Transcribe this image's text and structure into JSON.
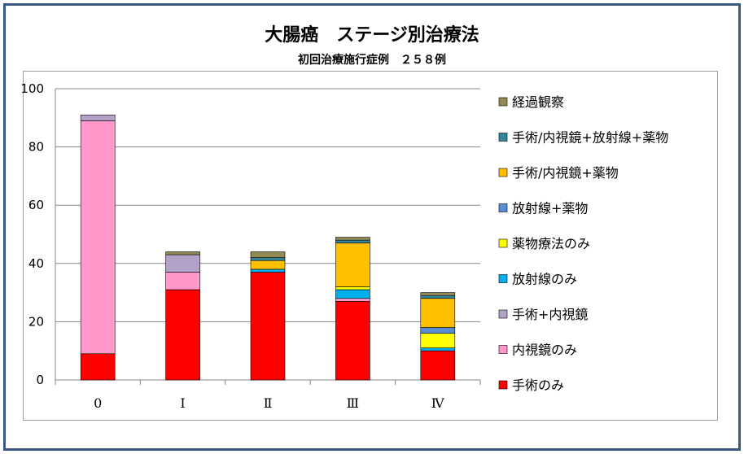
{
  "chart_data": {
    "type": "bar",
    "stacked": true,
    "title": "大腸癌　ステージ別治療法",
    "subtitle": "初回治療施行症例　２５８例",
    "categories": [
      "0",
      "Ⅰ",
      "Ⅱ",
      "Ⅲ",
      "Ⅳ"
    ],
    "ylim": [
      0,
      100
    ],
    "yticks": [
      0,
      20,
      40,
      60,
      80,
      100
    ],
    "grid": true,
    "legend_position": "right",
    "series": [
      {
        "name": "手術のみ",
        "color": "#ff0000",
        "values": [
          9,
          31,
          37,
          27,
          10
        ]
      },
      {
        "name": "内視鏡のみ",
        "color": "#ff99cc",
        "values": [
          80,
          6,
          0,
          1,
          0
        ]
      },
      {
        "name": "手術+内視鏡",
        "color": "#b3a2c7",
        "values": [
          2,
          6,
          0,
          0,
          0
        ]
      },
      {
        "name": "放射線のみ",
        "color": "#00b0f0",
        "values": [
          0,
          0,
          1,
          3,
          1
        ]
      },
      {
        "name": "薬物療法のみ",
        "color": "#ffff00",
        "values": [
          0,
          0,
          0,
          1,
          5
        ]
      },
      {
        "name": "放射線+薬物",
        "color": "#558ed5",
        "values": [
          0,
          0,
          0,
          0,
          2
        ]
      },
      {
        "name": "手術/内視鏡+薬物",
        "color": "#ffc000",
        "values": [
          0,
          0,
          3,
          15,
          10
        ]
      },
      {
        "name": "手術/内視鏡+放射線+薬物",
        "color": "#31859c",
        "values": [
          0,
          0,
          1,
          1,
          1
        ]
      },
      {
        "name": "経過観察",
        "color": "#948a54",
        "values": [
          0,
          1,
          2,
          1,
          1
        ]
      }
    ]
  }
}
